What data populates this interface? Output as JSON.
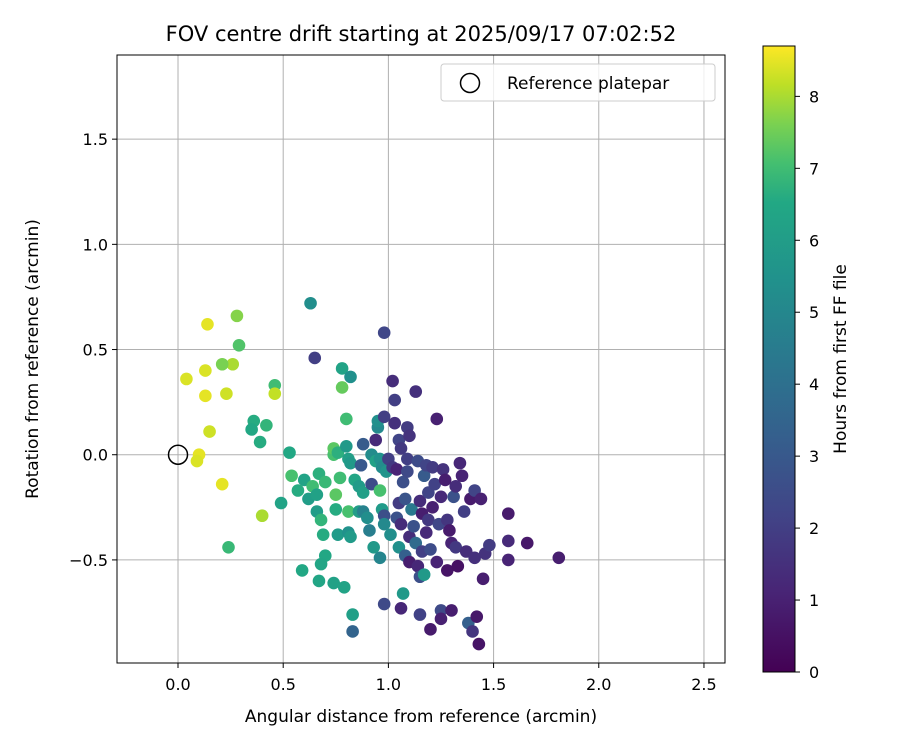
{
  "chart_data": {
    "type": "scatter",
    "title": "FOV centre drift starting at 2025/09/17 07:02:52",
    "xlabel": "Angular distance from reference (arcmin)",
    "ylabel": "Rotation from reference (arcmin)",
    "xlim": [
      -0.29,
      2.6
    ],
    "ylim": [
      -0.99,
      1.9
    ],
    "xticks": [
      0.0,
      0.5,
      1.0,
      1.5,
      2.0,
      2.5
    ],
    "xtick_labels": [
      "0.0",
      "0.5",
      "1.0",
      "1.5",
      "2.0",
      "2.5"
    ],
    "yticks": [
      -0.5,
      0.0,
      0.5,
      1.0,
      1.5
    ],
    "ytick_labels": [
      "−0.5",
      "0.0",
      "0.5",
      "1.0",
      "1.5"
    ],
    "grid": true,
    "legend": {
      "position": "top-right",
      "label": "Reference platepar"
    },
    "reference_point": {
      "x": 0.0,
      "y": 0.0
    },
    "colorbar": {
      "label": "Hours from first FF file",
      "range": [
        0,
        8.7
      ],
      "ticks": [
        0,
        1,
        2,
        3,
        4,
        5,
        6,
        7,
        8
      ],
      "tick_labels": [
        "0",
        "1",
        "2",
        "3",
        "4",
        "5",
        "6",
        "7",
        "8"
      ],
      "colormap": "viridis"
    },
    "points": [
      [
        0.04,
        0.36,
        8.4
      ],
      [
        0.14,
        0.62,
        8.5
      ],
      [
        0.13,
        0.4,
        8.4
      ],
      [
        0.13,
        0.28,
        8.5
      ],
      [
        0.15,
        0.11,
        8.3
      ],
      [
        0.1,
        0.0,
        8.5
      ],
      [
        0.09,
        -0.03,
        8.4
      ],
      [
        0.21,
        -0.14,
        8.5
      ],
      [
        0.23,
        0.29,
        8.3
      ],
      [
        0.26,
        0.43,
        8.0
      ],
      [
        0.21,
        0.43,
        7.6
      ],
      [
        0.28,
        0.66,
        7.7
      ],
      [
        0.29,
        0.52,
        7.2
      ],
      [
        0.46,
        0.33,
        7.0
      ],
      [
        0.46,
        0.29,
        8.2
      ],
      [
        0.4,
        -0.29,
        8.0
      ],
      [
        0.24,
        -0.44,
        6.9
      ],
      [
        0.36,
        0.16,
        6.6
      ],
      [
        0.35,
        0.12,
        6.5
      ],
      [
        0.42,
        0.14,
        6.8
      ],
      [
        0.39,
        0.06,
        6.6
      ],
      [
        0.53,
        0.01,
        6.5
      ],
      [
        0.54,
        -0.1,
        7.1
      ],
      [
        0.57,
        -0.17,
        6.6
      ],
      [
        0.6,
        -0.12,
        6.3
      ],
      [
        0.62,
        -0.21,
        6.0
      ],
      [
        0.64,
        -0.15,
        7.0
      ],
      [
        0.66,
        -0.19,
        6.2
      ],
      [
        0.67,
        -0.09,
        6.7
      ],
      [
        0.7,
        -0.13,
        6.9
      ],
      [
        0.49,
        -0.23,
        6.3
      ],
      [
        0.66,
        -0.27,
        6.0
      ],
      [
        0.68,
        -0.31,
        6.8
      ],
      [
        0.69,
        -0.38,
        6.6
      ],
      [
        0.7,
        -0.48,
        6.5
      ],
      [
        0.68,
        -0.52,
        6.4
      ],
      [
        0.59,
        -0.55,
        6.5
      ],
      [
        0.67,
        -0.6,
        6.4
      ],
      [
        0.74,
        -0.61,
        6.2
      ],
      [
        0.79,
        -0.63,
        6.3
      ],
      [
        0.83,
        -0.76,
        6.1
      ],
      [
        0.75,
        -0.19,
        7.3
      ],
      [
        0.75,
        -0.26,
        6.6
      ],
      [
        0.76,
        -0.38,
        5.9
      ],
      [
        0.77,
        -0.11,
        7.0
      ],
      [
        0.74,
        0.0,
        7.1
      ],
      [
        0.74,
        0.03,
        7.3
      ],
      [
        0.76,
        0.01,
        6.7
      ],
      [
        0.78,
        0.32,
        7.4
      ],
      [
        0.78,
        0.41,
        6.3
      ],
      [
        0.8,
        0.17,
        7.0
      ],
      [
        0.8,
        0.04,
        5.8
      ],
      [
        0.81,
        -0.02,
        6.1
      ],
      [
        0.82,
        -0.04,
        5.8
      ],
      [
        0.81,
        -0.27,
        7.1
      ],
      [
        0.81,
        -0.37,
        5.5
      ],
      [
        0.82,
        -0.39,
        5.9
      ],
      [
        0.82,
        0.37,
        5.4
      ],
      [
        0.63,
        0.72,
        5.3
      ],
      [
        0.65,
        0.46,
        2.0
      ],
      [
        0.83,
        -0.84,
        3.5
      ],
      [
        0.84,
        -0.12,
        6.4
      ],
      [
        0.86,
        -0.15,
        5.9
      ],
      [
        0.86,
        -0.27,
        6.0
      ],
      [
        0.87,
        -0.05,
        3.0
      ],
      [
        0.88,
        -0.18,
        6.1
      ],
      [
        0.88,
        -0.27,
        4.8
      ],
      [
        0.88,
        0.05,
        3.1
      ],
      [
        0.9,
        -0.3,
        5.3
      ],
      [
        0.91,
        -0.36,
        4.6
      ],
      [
        0.92,
        0.0,
        5.2
      ],
      [
        0.92,
        -0.14,
        2.5
      ],
      [
        0.93,
        -0.44,
        5.8
      ],
      [
        0.94,
        -0.03,
        6.2
      ],
      [
        0.94,
        0.07,
        1.3
      ],
      [
        0.95,
        0.13,
        5.1
      ],
      [
        0.95,
        0.16,
        5.4
      ],
      [
        0.96,
        -0.02,
        5.5
      ],
      [
        0.96,
        -0.17,
        7.1
      ],
      [
        0.96,
        -0.49,
        4.9
      ],
      [
        0.97,
        -0.06,
        5.2
      ],
      [
        0.97,
        -0.26,
        5.9
      ],
      [
        0.98,
        -0.29,
        2.6
      ],
      [
        0.98,
        -0.33,
        5.1
      ],
      [
        0.98,
        0.18,
        2.0
      ],
      [
        0.98,
        -0.71,
        2.4
      ],
      [
        0.98,
        0.58,
        2.3
      ],
      [
        0.99,
        -0.08,
        5.6
      ],
      [
        1.0,
        -0.02,
        2.0
      ],
      [
        1.01,
        -0.38,
        5.3
      ],
      [
        1.02,
        0.35,
        1.4
      ],
      [
        1.02,
        -0.06,
        1.8
      ],
      [
        1.03,
        0.26,
        2.0
      ],
      [
        1.03,
        0.15,
        1.5
      ],
      [
        1.04,
        -0.07,
        1.1
      ],
      [
        1.04,
        -0.3,
        2.7
      ],
      [
        1.05,
        -0.23,
        1.9
      ],
      [
        1.05,
        0.07,
        2.2
      ],
      [
        1.05,
        -0.44,
        5.4
      ],
      [
        1.06,
        0.03,
        1.8
      ],
      [
        1.06,
        -0.33,
        1.4
      ],
      [
        1.06,
        -0.73,
        1.2
      ],
      [
        1.07,
        -0.13,
        2.6
      ],
      [
        1.07,
        -0.66,
        5.8
      ],
      [
        1.08,
        -0.21,
        2.8
      ],
      [
        1.08,
        -0.48,
        3.3
      ],
      [
        1.09,
        0.13,
        1.9
      ],
      [
        1.09,
        -0.08,
        2.4
      ],
      [
        1.09,
        -0.02,
        2.0
      ],
      [
        1.1,
        0.09,
        1.6
      ],
      [
        1.1,
        -0.39,
        1.4
      ],
      [
        1.1,
        -0.51,
        0.9
      ],
      [
        1.11,
        -0.26,
        4.4
      ],
      [
        1.12,
        -0.34,
        2.7
      ],
      [
        1.13,
        -0.42,
        3.8
      ],
      [
        1.13,
        0.3,
        1.5
      ],
      [
        1.14,
        -0.03,
        2.5
      ],
      [
        1.14,
        -0.53,
        1.2
      ],
      [
        1.15,
        -0.22,
        1.4
      ],
      [
        1.15,
        -0.58,
        2.6
      ],
      [
        1.15,
        -0.76,
        2.1
      ],
      [
        1.16,
        -0.28,
        0.9
      ],
      [
        1.16,
        -0.46,
        2.0
      ],
      [
        1.17,
        -0.57,
        5.8
      ],
      [
        1.17,
        -0.1,
        3.1
      ],
      [
        1.18,
        -0.05,
        2.2
      ],
      [
        1.18,
        -0.37,
        1.3
      ],
      [
        1.19,
        -0.18,
        2.2
      ],
      [
        1.19,
        -0.31,
        1.8
      ],
      [
        1.2,
        -0.83,
        0.8
      ],
      [
        1.2,
        -0.45,
        2.5
      ],
      [
        1.21,
        -0.06,
        1.9
      ],
      [
        1.21,
        -0.25,
        1.0
      ],
      [
        1.22,
        -0.14,
        2.1
      ],
      [
        1.23,
        -0.51,
        1.1
      ],
      [
        1.23,
        0.17,
        1.0
      ],
      [
        1.24,
        -0.33,
        2.3
      ],
      [
        1.25,
        -0.2,
        1.3
      ],
      [
        1.25,
        -0.74,
        2.4
      ],
      [
        1.25,
        -0.78,
        1.0
      ],
      [
        1.26,
        -0.07,
        1.6
      ],
      [
        1.27,
        -0.12,
        0.9
      ],
      [
        1.28,
        -0.31,
        1.7
      ],
      [
        1.28,
        -0.55,
        0.6
      ],
      [
        1.29,
        -0.36,
        0.8
      ],
      [
        1.3,
        -0.42,
        1.1
      ],
      [
        1.3,
        -0.74,
        0.9
      ],
      [
        1.31,
        -0.2,
        2.7
      ],
      [
        1.32,
        -0.15,
        1.4
      ],
      [
        1.32,
        -0.44,
        1.8
      ],
      [
        1.33,
        -0.53,
        0.5
      ],
      [
        1.34,
        -0.04,
        1.2
      ],
      [
        1.35,
        -0.1,
        1.1
      ],
      [
        1.36,
        -0.27,
        2.0
      ],
      [
        1.37,
        -0.46,
        1.4
      ],
      [
        1.38,
        -0.8,
        3.3
      ],
      [
        1.39,
        -0.21,
        0.8
      ],
      [
        1.4,
        -0.84,
        1.7
      ],
      [
        1.41,
        -0.17,
        2.2
      ],
      [
        1.41,
        -0.49,
        1.5
      ],
      [
        1.42,
        -0.77,
        0.7
      ],
      [
        1.43,
        -0.9,
        0.6
      ],
      [
        1.44,
        -0.21,
        1.0
      ],
      [
        1.45,
        -0.59,
        0.9
      ],
      [
        1.46,
        -0.47,
        1.6
      ],
      [
        1.48,
        -0.43,
        1.9
      ],
      [
        1.57,
        -0.28,
        0.8
      ],
      [
        1.57,
        -0.41,
        1.3
      ],
      [
        1.57,
        -0.5,
        1.1
      ],
      [
        1.66,
        -0.42,
        0.7
      ],
      [
        1.81,
        -0.49,
        0.9
      ]
    ]
  }
}
